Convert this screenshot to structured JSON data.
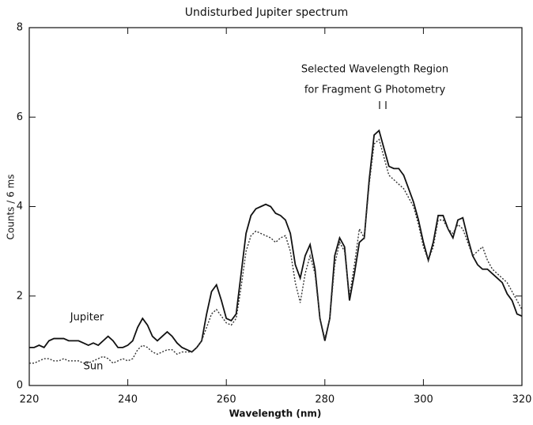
{
  "chart_data": {
    "type": "line",
    "title": "Undisturbed Jupiter spectrum",
    "xlabel": "Wavelength (nm)",
    "ylabel": "Counts / 6 ms",
    "annotations": [
      "Selected Wavelength Region",
      "for Fragment G Photometry"
    ],
    "xlim": [
      220,
      320
    ],
    "ylim": [
      0,
      8
    ],
    "xticks": [
      220,
      240,
      260,
      280,
      300,
      320
    ],
    "yticks": [
      0,
      2,
      4,
      6,
      8
    ],
    "x": [
      220,
      221,
      222,
      223,
      224,
      225,
      226,
      227,
      228,
      229,
      230,
      231,
      232,
      233,
      234,
      235,
      236,
      237,
      238,
      239,
      240,
      241,
      242,
      243,
      244,
      245,
      246,
      247,
      248,
      249,
      250,
      251,
      252,
      253,
      254,
      255,
      256,
      257,
      258,
      259,
      260,
      261,
      262,
      263,
      264,
      265,
      266,
      267,
      268,
      269,
      270,
      271,
      272,
      273,
      274,
      275,
      276,
      277,
      278,
      279,
      280,
      281,
      282,
      283,
      284,
      285,
      286,
      287,
      288,
      289,
      290,
      291,
      292,
      293,
      294,
      295,
      296,
      297,
      298,
      299,
      300,
      301,
      302,
      303,
      304,
      305,
      306,
      307,
      308,
      309,
      310,
      311,
      312,
      313,
      314,
      315,
      316,
      317,
      318,
      319,
      320
    ],
    "series": [
      {
        "name": "Jupiter",
        "color": "#111111",
        "dash": "none",
        "values": [
          0.85,
          0.85,
          0.9,
          0.85,
          1.0,
          1.05,
          1.05,
          1.05,
          1.0,
          1.0,
          1.0,
          0.95,
          0.9,
          0.95,
          0.9,
          1.0,
          1.1,
          1.0,
          0.85,
          0.85,
          0.9,
          1.0,
          1.3,
          1.5,
          1.35,
          1.1,
          1.0,
          1.1,
          1.2,
          1.1,
          0.95,
          0.85,
          0.8,
          0.75,
          0.85,
          1.0,
          1.6,
          2.1,
          2.25,
          1.9,
          1.5,
          1.45,
          1.6,
          2.5,
          3.4,
          3.8,
          3.95,
          4.0,
          4.05,
          4.0,
          3.85,
          3.8,
          3.7,
          3.4,
          2.7,
          2.4,
          2.9,
          3.15,
          2.6,
          1.5,
          1.0,
          1.5,
          2.9,
          3.3,
          3.1,
          1.9,
          2.5,
          3.2,
          3.3,
          4.6,
          5.6,
          5.7,
          5.3,
          4.9,
          4.85,
          4.85,
          4.7,
          4.4,
          4.1,
          3.7,
          3.2,
          2.8,
          3.2,
          3.8,
          3.8,
          3.5,
          3.3,
          3.7,
          3.75,
          3.3,
          2.9,
          2.7,
          2.6,
          2.6,
          2.5,
          2.4,
          2.3,
          2.05,
          1.9,
          1.6,
          1.55
        ]
      },
      {
        "name": "Sun",
        "color": "#333333",
        "dash": "2 2",
        "values": [
          0.5,
          0.5,
          0.55,
          0.6,
          0.6,
          0.55,
          0.55,
          0.6,
          0.55,
          0.55,
          0.55,
          0.5,
          0.5,
          0.55,
          0.6,
          0.65,
          0.6,
          0.5,
          0.55,
          0.6,
          0.55,
          0.6,
          0.8,
          0.9,
          0.85,
          0.75,
          0.7,
          0.75,
          0.8,
          0.8,
          0.7,
          0.75,
          0.75,
          0.75,
          0.85,
          1.0,
          1.3,
          1.6,
          1.7,
          1.55,
          1.4,
          1.35,
          1.5,
          2.2,
          3.0,
          3.35,
          3.45,
          3.4,
          3.35,
          3.3,
          3.2,
          3.3,
          3.35,
          3.0,
          2.3,
          1.85,
          2.5,
          2.9,
          2.5,
          1.5,
          1.05,
          1.5,
          2.7,
          3.2,
          3.0,
          2.0,
          2.7,
          3.5,
          3.3,
          4.5,
          5.4,
          5.5,
          5.1,
          4.7,
          4.6,
          4.5,
          4.4,
          4.2,
          4.0,
          3.6,
          3.1,
          2.8,
          3.1,
          3.7,
          3.7,
          3.5,
          3.4,
          3.6,
          3.5,
          3.2,
          2.9,
          3.0,
          3.1,
          2.8,
          2.6,
          2.5,
          2.4,
          2.3,
          2.1,
          1.9,
          1.7
        ]
      }
    ]
  }
}
